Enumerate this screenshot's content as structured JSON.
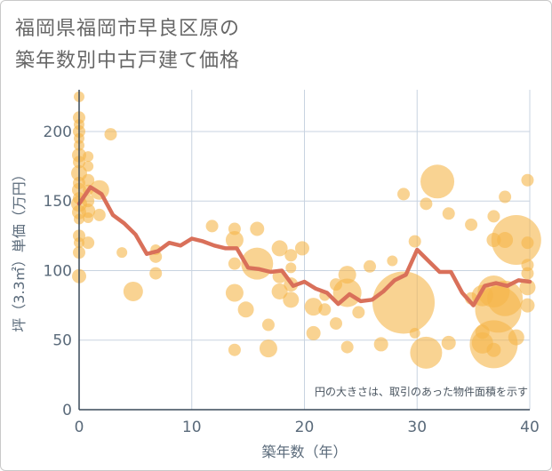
{
  "title_line1": "福岡県福岡市早良区原の",
  "title_line2": "築年数別中古戸建て価格",
  "chart_data": {
    "type": "scatter",
    "title": "福岡県福岡市早良区原の築年数別中古戸建て価格",
    "xlabel": "築年数（年）",
    "ylabel": "坪（3.3㎡）単価（万円）",
    "xlim": [
      0,
      40
    ],
    "ylim": [
      0,
      230
    ],
    "xticks": [
      0,
      10,
      20,
      30,
      40
    ],
    "yticks": [
      0,
      50,
      100,
      150,
      200
    ],
    "grid": true,
    "note": "円の大きさは、取引のあった物件面積を示す",
    "colors": {
      "bubble": "#f5b54a",
      "line": "#d9705a",
      "grid": "#c8d3e0",
      "axis": "#3a4a5a"
    },
    "bubbles": [
      {
        "x": 0,
        "y": 225,
        "r": 6
      },
      {
        "x": 0,
        "y": 210,
        "r": 7
      },
      {
        "x": 0,
        "y": 205,
        "r": 6
      },
      {
        "x": 0,
        "y": 200,
        "r": 7
      },
      {
        "x": 0,
        "y": 195,
        "r": 6
      },
      {
        "x": 0,
        "y": 190,
        "r": 6
      },
      {
        "x": 0,
        "y": 183,
        "r": 8
      },
      {
        "x": 0,
        "y": 178,
        "r": 7
      },
      {
        "x": 0,
        "y": 170,
        "r": 9
      },
      {
        "x": 0,
        "y": 163,
        "r": 7
      },
      {
        "x": 0,
        "y": 158,
        "r": 8
      },
      {
        "x": 0,
        "y": 152,
        "r": 7
      },
      {
        "x": 0,
        "y": 148,
        "r": 9
      },
      {
        "x": 0,
        "y": 142,
        "r": 8
      },
      {
        "x": 0,
        "y": 137,
        "r": 6
      },
      {
        "x": 0,
        "y": 125,
        "r": 7
      },
      {
        "x": 0,
        "y": 120,
        "r": 6
      },
      {
        "x": 0,
        "y": 113,
        "r": 7
      },
      {
        "x": 0,
        "y": 96,
        "r": 8
      },
      {
        "x": 0.8,
        "y": 182,
        "r": 6
      },
      {
        "x": 0.8,
        "y": 175,
        "r": 6
      },
      {
        "x": 0.8,
        "y": 165,
        "r": 7
      },
      {
        "x": 0.8,
        "y": 158,
        "r": 6
      },
      {
        "x": 0.8,
        "y": 150,
        "r": 7
      },
      {
        "x": 0.8,
        "y": 143,
        "r": 8
      },
      {
        "x": 0.8,
        "y": 138,
        "r": 6
      },
      {
        "x": 0.8,
        "y": 120,
        "r": 7
      },
      {
        "x": 1.8,
        "y": 158,
        "r": 11
      },
      {
        "x": 1.8,
        "y": 140,
        "r": 7
      },
      {
        "x": 2.8,
        "y": 198,
        "r": 7
      },
      {
        "x": 3.8,
        "y": 113,
        "r": 6
      },
      {
        "x": 4.8,
        "y": 85,
        "r": 11
      },
      {
        "x": 6.8,
        "y": 110,
        "r": 7
      },
      {
        "x": 6.8,
        "y": 115,
        "r": 6
      },
      {
        "x": 6.8,
        "y": 98,
        "r": 7
      },
      {
        "x": 11.8,
        "y": 132,
        "r": 7
      },
      {
        "x": 13.8,
        "y": 130,
        "r": 7
      },
      {
        "x": 13.8,
        "y": 122,
        "r": 10
      },
      {
        "x": 13.8,
        "y": 105,
        "r": 7
      },
      {
        "x": 13.8,
        "y": 84,
        "r": 10
      },
      {
        "x": 13.8,
        "y": 43,
        "r": 7
      },
      {
        "x": 14.8,
        "y": 72,
        "r": 9
      },
      {
        "x": 15.8,
        "y": 130,
        "r": 8
      },
      {
        "x": 15.8,
        "y": 105,
        "r": 18
      },
      {
        "x": 16.8,
        "y": 61,
        "r": 7
      },
      {
        "x": 16.8,
        "y": 44,
        "r": 10
      },
      {
        "x": 17.8,
        "y": 116,
        "r": 9
      },
      {
        "x": 17.8,
        "y": 96,
        "r": 8
      },
      {
        "x": 17.8,
        "y": 85,
        "r": 9
      },
      {
        "x": 18.8,
        "y": 111,
        "r": 7
      },
      {
        "x": 18.8,
        "y": 102,
        "r": 6
      },
      {
        "x": 18.8,
        "y": 90,
        "r": 8
      },
      {
        "x": 18.8,
        "y": 79,
        "r": 9
      },
      {
        "x": 19.8,
        "y": 116,
        "r": 8
      },
      {
        "x": 20.8,
        "y": 74,
        "r": 10
      },
      {
        "x": 20.8,
        "y": 55,
        "r": 8
      },
      {
        "x": 21.8,
        "y": 82,
        "r": 6
      },
      {
        "x": 21.8,
        "y": 72,
        "r": 7
      },
      {
        "x": 22.8,
        "y": 90,
        "r": 7
      },
      {
        "x": 22.8,
        "y": 62,
        "r": 7
      },
      {
        "x": 23.8,
        "y": 97,
        "r": 10
      },
      {
        "x": 23.8,
        "y": 84,
        "r": 16
      },
      {
        "x": 23.8,
        "y": 45,
        "r": 7
      },
      {
        "x": 24.8,
        "y": 70,
        "r": 7
      },
      {
        "x": 25.8,
        "y": 103,
        "r": 7
      },
      {
        "x": 26.8,
        "y": 47,
        "r": 8
      },
      {
        "x": 27.8,
        "y": 107,
        "r": 6
      },
      {
        "x": 28.8,
        "y": 155,
        "r": 7
      },
      {
        "x": 28.8,
        "y": 77,
        "r": 35
      },
      {
        "x": 29.8,
        "y": 121,
        "r": 7
      },
      {
        "x": 29.8,
        "y": 55,
        "r": 6
      },
      {
        "x": 30.8,
        "y": 148,
        "r": 7
      },
      {
        "x": 30.8,
        "y": 41,
        "r": 18
      },
      {
        "x": 31.8,
        "y": 164,
        "r": 19
      },
      {
        "x": 32.8,
        "y": 141,
        "r": 7
      },
      {
        "x": 32.8,
        "y": 48,
        "r": 8
      },
      {
        "x": 34.8,
        "y": 133,
        "r": 7
      },
      {
        "x": 34.8,
        "y": 80,
        "r": 7
      },
      {
        "x": 35.8,
        "y": 82,
        "r": 12
      },
      {
        "x": 35.8,
        "y": 56,
        "r": 8
      },
      {
        "x": 35.8,
        "y": 48,
        "r": 12
      },
      {
        "x": 36.8,
        "y": 139,
        "r": 7
      },
      {
        "x": 36.8,
        "y": 122,
        "r": 8
      },
      {
        "x": 36.8,
        "y": 85,
        "r": 18
      },
      {
        "x": 36.8,
        "y": 43,
        "r": 8
      },
      {
        "x": 36.8,
        "y": 47,
        "r": 27
      },
      {
        "x": 37.2,
        "y": 72,
        "r": 26
      },
      {
        "x": 37.8,
        "y": 153,
        "r": 7
      },
      {
        "x": 37.8,
        "y": 122,
        "r": 9
      },
      {
        "x": 37.8,
        "y": 80,
        "r": 20
      },
      {
        "x": 38.8,
        "y": 122,
        "r": 28
      },
      {
        "x": 38.8,
        "y": 52,
        "r": 9
      },
      {
        "x": 39.8,
        "y": 165,
        "r": 7
      },
      {
        "x": 39.8,
        "y": 120,
        "r": 7
      },
      {
        "x": 39.8,
        "y": 104,
        "r": 7
      },
      {
        "x": 39.8,
        "y": 98,
        "r": 7
      },
      {
        "x": 39.8,
        "y": 88,
        "r": 9
      },
      {
        "x": 39.8,
        "y": 75,
        "r": 8
      }
    ],
    "trend_line": {
      "x": [
        0,
        1,
        2,
        3,
        4,
        5,
        6,
        7,
        8,
        9,
        10,
        11,
        12,
        13,
        14,
        15,
        16,
        17,
        18,
        19,
        20,
        21,
        22,
        23,
        24,
        25,
        26,
        27,
        28,
        29,
        30,
        31,
        32,
        33,
        34,
        35,
        36,
        37,
        38,
        39,
        40
      ],
      "y": [
        148,
        160,
        155,
        140,
        134,
        126,
        112,
        114,
        120,
        118,
        123,
        121,
        118,
        116,
        116,
        102,
        101,
        99,
        100,
        89,
        92,
        87,
        84,
        76,
        83,
        78,
        79,
        85,
        93,
        97,
        115,
        107,
        99,
        99,
        84,
        75,
        89,
        91,
        89,
        93,
        92
      ]
    }
  }
}
